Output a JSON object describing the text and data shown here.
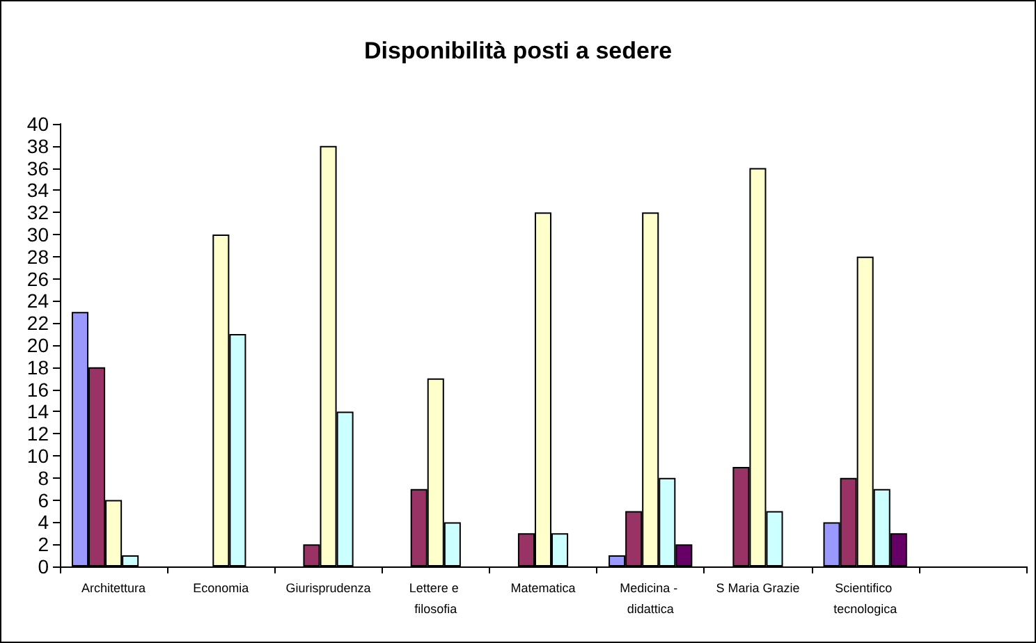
{
  "chart_data": {
    "type": "bar",
    "title": "Disponibilità posti a sedere",
    "categories": [
      "Architettura",
      "Economia",
      "Giurisprudenza",
      "Lettere e filosofia",
      "Matematica",
      "Medicina - didattica",
      "S Maria Grazie",
      "Scientifico tecnologica",
      null
    ],
    "series": [
      {
        "color": "#9999ff",
        "values": [
          23,
          null,
          null,
          null,
          null,
          1,
          null,
          4,
          null
        ]
      },
      {
        "color": "#993366",
        "values": [
          18,
          null,
          2,
          7,
          3,
          5,
          9,
          8,
          null
        ]
      },
      {
        "color": "#ffffcc",
        "values": [
          6,
          30,
          38,
          17,
          32,
          32,
          36,
          28,
          null
        ]
      },
      {
        "color": "#ccffff",
        "values": [
          1,
          21,
          14,
          4,
          3,
          8,
          5,
          7,
          null
        ]
      },
      {
        "color": "#660066",
        "values": [
          null,
          null,
          null,
          null,
          null,
          2,
          null,
          3,
          null
        ]
      }
    ],
    "ylim": [
      0,
      40
    ],
    "yticks": [
      0,
      2,
      4,
      6,
      8,
      10,
      12,
      14,
      16,
      18,
      20,
      22,
      24,
      26,
      28,
      30,
      32,
      34,
      36,
      38,
      40
    ],
    "grid": false
  }
}
